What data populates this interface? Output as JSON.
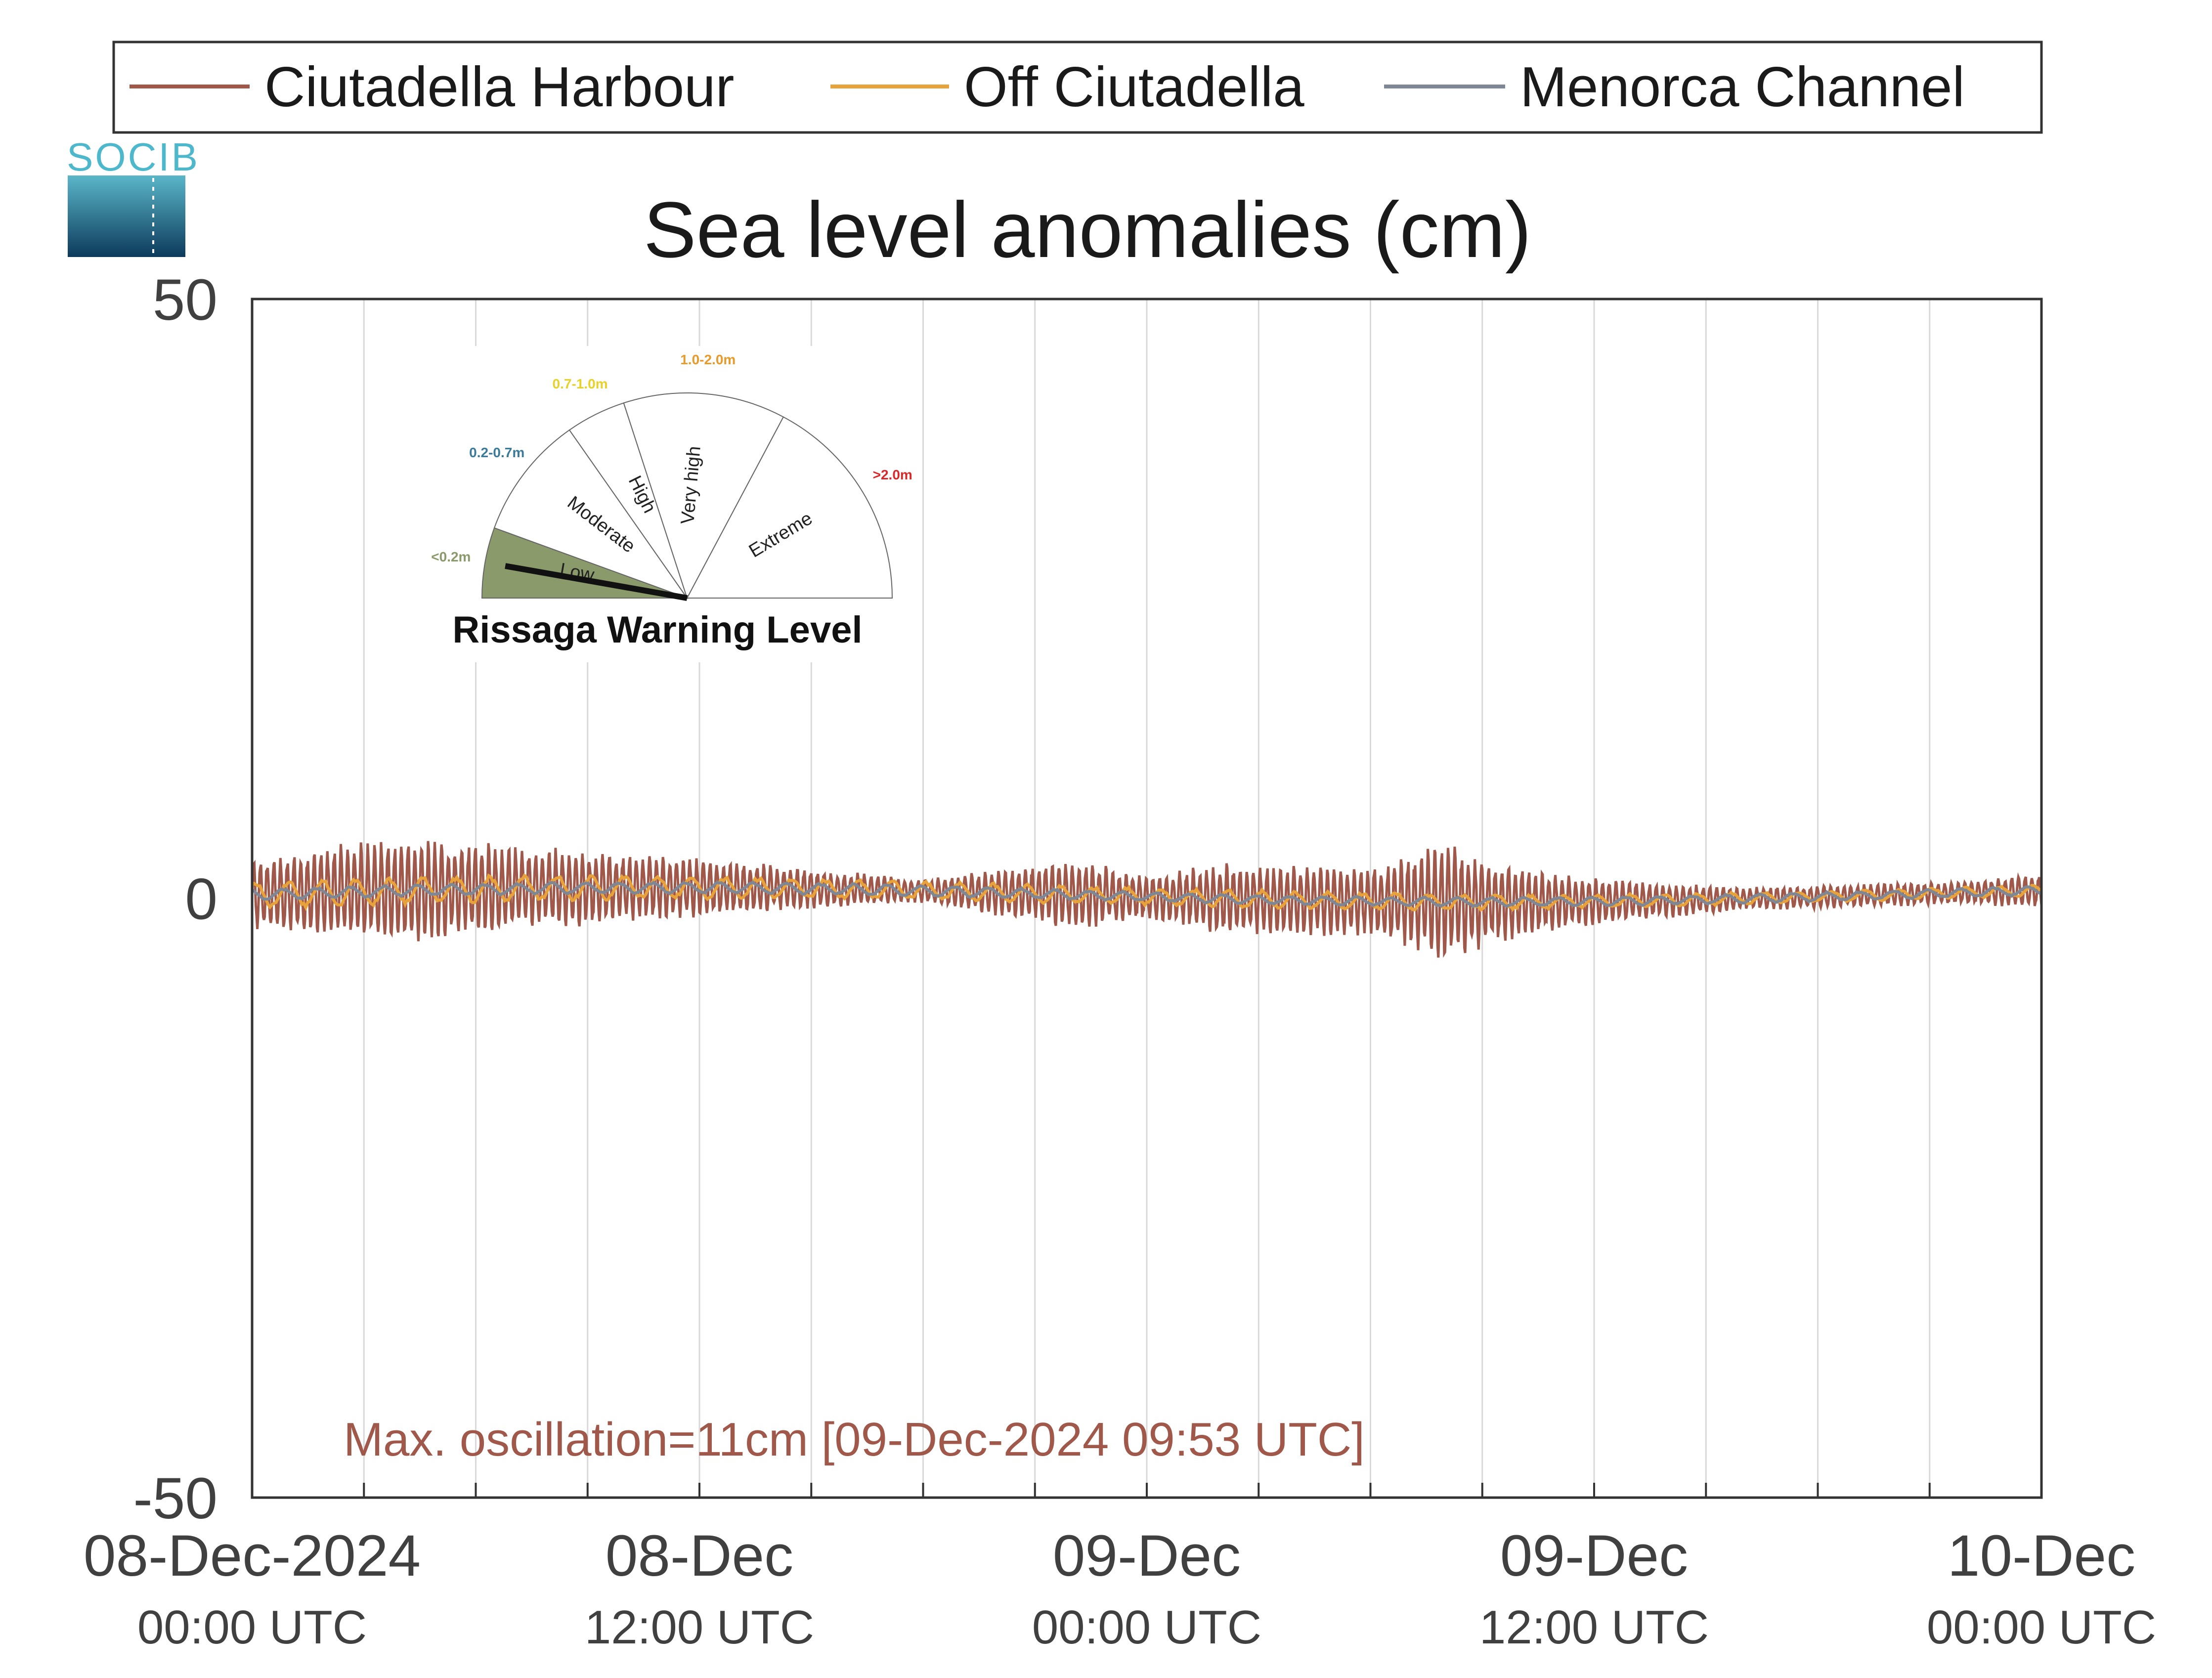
{
  "logo": {
    "text": "SOCIB"
  },
  "chart_data": {
    "type": "line",
    "title": "Sea level anomalies (cm)",
    "xlabel": "",
    "ylabel": "",
    "ylim": [
      -50,
      50
    ],
    "yticks": [
      "50",
      "0",
      "-50"
    ],
    "xlim": [
      "2024-12-08T00:00",
      "2024-12-10T00:00"
    ],
    "xticks": [
      {
        "date": "08-Dec-2024",
        "time": "00:00 UTC"
      },
      {
        "date": "08-Dec",
        "time": "12:00 UTC"
      },
      {
        "date": "09-Dec",
        "time": "00:00 UTC"
      },
      {
        "date": "09-Dec",
        "time": "12:00 UTC"
      },
      {
        "date": "10-Dec",
        "time": "00:00 UTC"
      }
    ],
    "grid": true,
    "legend": {
      "placement": "top",
      "entries": [
        "Ciutadella Harbour",
        "Off Ciutadella",
        "Menorca Channel"
      ]
    },
    "series": [
      {
        "name": "Ciutadella Harbour",
        "color": "#a0584a",
        "description_envelope_hours": [
          0,
          2,
          4,
          6,
          8,
          10,
          12,
          14,
          16,
          18,
          20,
          22,
          24,
          26,
          28,
          30,
          32,
          34,
          36,
          38,
          40,
          42,
          44,
          46,
          48
        ],
        "envelope_cm": [
          3,
          4,
          4.5,
          4,
          3.5,
          3,
          2.5,
          2,
          1.5,
          1,
          2,
          3,
          2,
          3,
          3,
          3,
          5,
          3,
          2,
          1.5,
          1,
          1,
          1,
          1,
          1.5
        ]
      },
      {
        "name": "Off Ciutadella",
        "color": "#e8a23c",
        "description_envelope_hours": [
          0,
          6,
          12,
          18,
          24,
          30,
          36,
          42,
          48
        ],
        "envelope_cm": [
          1.2,
          1.2,
          1,
          0.8,
          0.8,
          0.8,
          0.6,
          0.5,
          0.5
        ]
      },
      {
        "name": "Menorca Channel",
        "color": "#7f8794",
        "description_envelope_hours": [
          0,
          6,
          12,
          18,
          24,
          30,
          36,
          42,
          48
        ],
        "envelope_cm": [
          0.5,
          0.5,
          0.5,
          0.5,
          0.4,
          0.4,
          0.4,
          0.4,
          0.4
        ]
      }
    ],
    "annotation": {
      "text": "Max. oscillation=11cm [09-Dec-2024 09:53 UTC]",
      "color": "#a0584a"
    }
  },
  "gauge": {
    "title": "Rissaga Warning Level",
    "level": "Low",
    "sectors": [
      {
        "label": "Low",
        "range": "<0.2m",
        "color": "#8a9a6a"
      },
      {
        "label": "Moderate",
        "range": "0.2-0.7m",
        "color": "#3a7a9a"
      },
      {
        "label": "High",
        "range": "0.7-1.0m",
        "color": "#e6d22a"
      },
      {
        "label": "Very high",
        "range": "1.0-2.0m",
        "color": "#e89a2a"
      },
      {
        "label": "Extreme",
        "range": ">2.0m",
        "color": "#d8282a"
      }
    ]
  }
}
